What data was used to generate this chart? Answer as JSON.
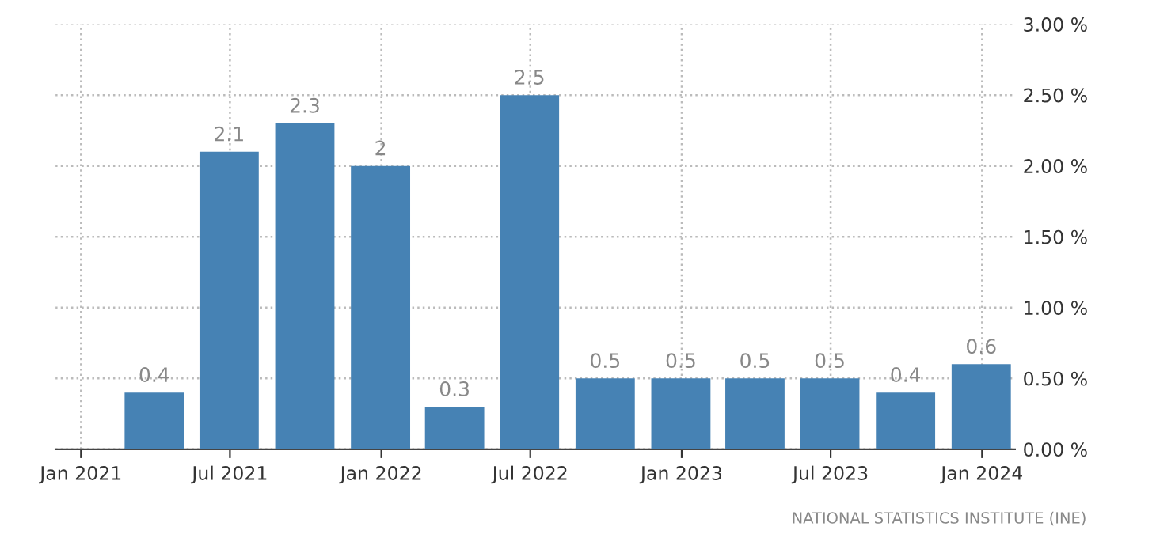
{
  "chart_data": {
    "type": "bar",
    "x": [
      "2021-03-31",
      "2021-06-30",
      "2021-09-30",
      "2021-12-31",
      "2022-03-31",
      "2022-06-30",
      "2022-09-30",
      "2022-12-31",
      "2023-03-31",
      "2023-06-30",
      "2023-09-30",
      "2023-12-31"
    ],
    "values": [
      0.4,
      2.1,
      2.3,
      2,
      0.3,
      2.5,
      0.5,
      0.5,
      0.5,
      0.5,
      0.4,
      0.6
    ],
    "value_labels": [
      "0.4",
      "2.1",
      "2.3",
      "2",
      "0.3",
      "2.5",
      "0.5",
      "0.5",
      "0.5",
      "0.5",
      "0.4",
      "0.6"
    ],
    "color": "#4682b4",
    "xlim": [
      "2020-12-01",
      "2024-02-10"
    ],
    "xticks": [
      {
        "value": "2021-01-01",
        "label": "Jan 2021"
      },
      {
        "value": "2021-07-01",
        "label": "Jul 2021"
      },
      {
        "value": "2022-01-01",
        "label": "Jan 2022"
      },
      {
        "value": "2022-07-01",
        "label": "Jul 2022"
      },
      {
        "value": "2023-01-01",
        "label": "Jan 2023"
      },
      {
        "value": "2023-07-01",
        "label": "Jul 2023"
      },
      {
        "value": "2024-01-01",
        "label": "Jan 2024"
      }
    ],
    "ylim": [
      0,
      3
    ],
    "yticks": [
      {
        "value": 0,
        "label": "0.00 %"
      },
      {
        "value": 0.5,
        "label": "0.50 %"
      },
      {
        "value": 1,
        "label": "1.00 %"
      },
      {
        "value": 1.5,
        "label": "1.50 %"
      },
      {
        "value": 2,
        "label": "2.00 %"
      },
      {
        "value": 2.5,
        "label": "2.50 %"
      },
      {
        "value": 3,
        "label": "3.00 %"
      }
    ],
    "grid": true,
    "annotations": [
      "NATIONAL STATISTICS INSTITUTE (INE)"
    ]
  }
}
